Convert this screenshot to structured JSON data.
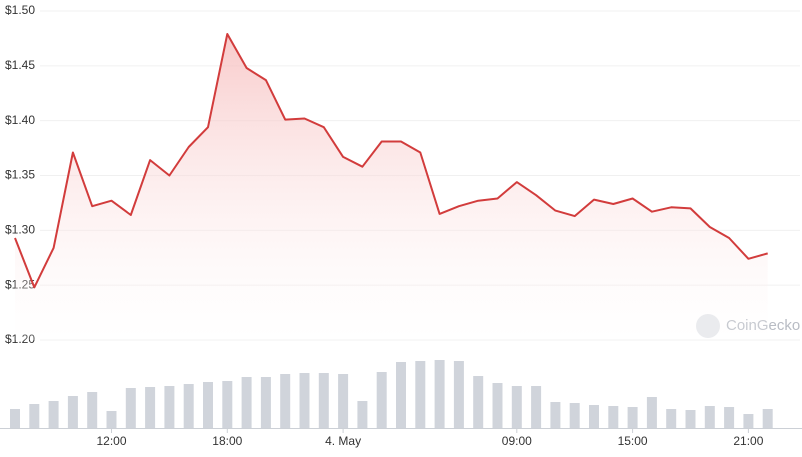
{
  "chart_data": {
    "type": "line",
    "categories": [
      null,
      null,
      null,
      null,
      null,
      "12:00",
      null,
      null,
      null,
      null,
      null,
      "18:00",
      null,
      null,
      null,
      null,
      null,
      "4. May",
      null,
      null,
      null,
      null,
      null,
      null,
      null,
      null,
      "09:00",
      null,
      null,
      null,
      null,
      null,
      "15:00",
      null,
      null,
      null,
      null,
      null,
      "21:00",
      null
    ],
    "series": [
      {
        "color": "#d23c3c",
        "values": [
          1.293,
          1.248,
          1.284,
          1.371,
          1.322,
          1.327,
          1.314,
          1.364,
          1.35,
          1.376,
          1.394,
          1.479,
          1.448,
          1.437,
          1.401,
          1.402,
          1.394,
          1.367,
          1.358,
          1.381,
          1.381,
          1.371,
          1.315,
          1.322,
          1.327,
          1.329,
          1.344,
          1.332,
          1.318,
          1.313,
          1.328,
          1.324,
          1.329,
          1.317,
          1.321,
          1.32,
          1.303,
          1.293,
          1.274,
          1.279
        ]
      }
    ],
    "volume": {
      "color": "#d0d4db",
      "values": [
        19,
        24,
        27,
        32,
        36,
        17,
        40,
        41,
        42,
        44,
        46,
        47,
        51,
        51,
        54,
        55,
        55,
        54,
        27,
        56,
        66,
        67,
        68,
        67,
        52,
        45,
        42,
        42,
        26,
        25,
        23,
        22,
        21,
        31,
        19,
        18,
        22,
        21,
        14,
        19
      ],
      "ylim": [
        0,
        70
      ]
    },
    "ylim": [
      1.2,
      1.5
    ],
    "yticks": [
      {
        "value": 1.2,
        "label": "$1.20"
      },
      {
        "value": 1.25,
        "label": "$1.25"
      },
      {
        "value": 1.3,
        "label": "$1.30"
      },
      {
        "value": 1.35,
        "label": "$1.35"
      },
      {
        "value": 1.4,
        "label": "$1.40"
      },
      {
        "value": 1.45,
        "label": "$1.45"
      },
      {
        "value": 1.5,
        "label": "$1.50"
      }
    ],
    "grid": true,
    "watermark": "CoinGecko"
  }
}
